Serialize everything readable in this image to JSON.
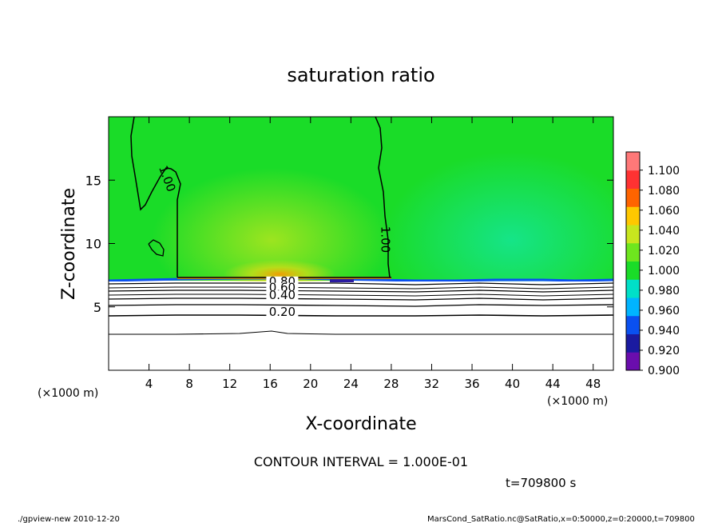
{
  "chart_data": {
    "type": "heatmap",
    "title": "saturation ratio",
    "xlabel": "X-coordinate",
    "ylabel": "Z-coordinate",
    "x_unit_left": "(×1000 m)",
    "x_unit_right": "(×1000 m)",
    "xlim": [
      0,
      50
    ],
    "ylim": [
      0,
      20
    ],
    "x_ticks": [
      4,
      8,
      12,
      16,
      20,
      24,
      28,
      32,
      36,
      40,
      44,
      48
    ],
    "y_ticks": [
      5,
      10,
      15
    ],
    "colorbar": {
      "levels": [
        0.9,
        0.92,
        0.94,
        0.96,
        0.98,
        1.0,
        1.02,
        1.04,
        1.06,
        1.08,
        1.1
      ],
      "labels": [
        "0.900",
        "0.920",
        "0.940",
        "0.960",
        "0.980",
        "1.000",
        "1.020",
        "1.040",
        "1.060",
        "1.080",
        "1.100"
      ],
      "colors": [
        "#6a0dad",
        "#1a1aa0",
        "#0a50f0",
        "#00b4ff",
        "#00e0c8",
        "#1adc28",
        "#6ee61e",
        "#c8e61e",
        "#ffc800",
        "#ff6400",
        "#ff3232",
        "#ff7878"
      ]
    },
    "contour_labels": [
      {
        "text": "1.00",
        "x": 5.8,
        "z": 14.8
      },
      {
        "text": "1.00",
        "x": 27.4,
        "z": 10.0
      },
      {
        "text": "0.80",
        "x": 17.2,
        "z": 6.7
      },
      {
        "text": "0.60",
        "x": 17.2,
        "z": 6.2
      },
      {
        "text": "0.40",
        "x": 17.2,
        "z": 5.6
      },
      {
        "text": "0.20",
        "x": 17.2,
        "z": 4.3
      }
    ],
    "contour_interval": "CONTOUR INTERVAL = 1.000E-01",
    "time_label": "t=709800 s"
  },
  "footer": {
    "left": "./gpview-new   2010-12-20",
    "right": "MarsCond_SatRatio.nc@SatRatio,x=0:50000,z=0:20000,t=709800"
  }
}
